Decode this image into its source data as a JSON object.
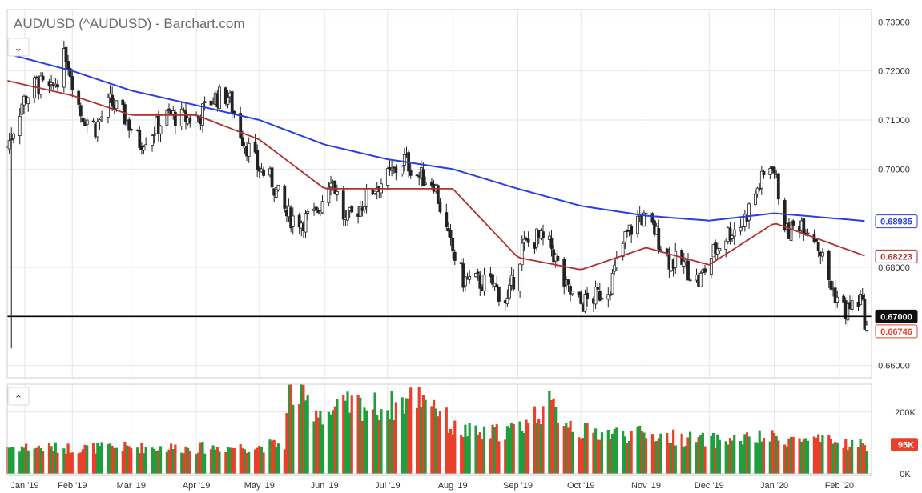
{
  "title": "AUD/USD (^AUDUSD) - Barchart.com",
  "colors": {
    "up": "#1f9e3c",
    "down": "#e8402a",
    "ma_long": "#2a3fe0",
    "ma_short": "#b22f2f",
    "support": "#000000",
    "grid": "#e6e6e6"
  },
  "chart_data": [
    {
      "type": "candlestick",
      "title": "AUD/USD (^AUDUSD) - Barchart.com",
      "x_range": [
        "2019-01-01",
        "2020-02-14"
      ],
      "x_ticks": [
        "Jan '19",
        "Feb '19",
        "Mar '19",
        "Apr '19",
        "May '19",
        "Jun '19",
        "Jul '19",
        "Aug '19",
        "Sep '19",
        "Oct '19",
        "Nov '19",
        "Dec '19",
        "Jan '20",
        "Feb '20"
      ],
      "y_ticks": [
        "0.73000",
        "0.72000",
        "0.71000",
        "0.70000",
        "0.68000",
        "0.66000"
      ],
      "ylim": [
        0.6575,
        0.7325
      ],
      "grid": true,
      "close_series": [
        [
          "2019-01-01",
          0.7045
        ],
        [
          "2019-01-08",
          0.7135
        ],
        [
          "2019-01-15",
          0.7175
        ],
        [
          "2019-01-22",
          0.7155
        ],
        [
          "2019-01-29",
          0.7235
        ],
        [
          "2019-02-05",
          0.7115
        ],
        [
          "2019-02-12",
          0.7085
        ],
        [
          "2019-02-19",
          0.7135
        ],
        [
          "2019-02-26",
          0.7105
        ],
        [
          "2019-03-05",
          0.7055
        ],
        [
          "2019-03-12",
          0.7082
        ],
        [
          "2019-03-19",
          0.711
        ],
        [
          "2019-03-26",
          0.7102
        ],
        [
          "2019-04-02",
          0.7105
        ],
        [
          "2019-04-09",
          0.7145
        ],
        [
          "2019-04-16",
          0.715
        ],
        [
          "2019-04-23",
          0.7065
        ],
        [
          "2019-04-30",
          0.7005
        ],
        [
          "2019-05-07",
          0.6975
        ],
        [
          "2019-05-14",
          0.6905
        ],
        [
          "2019-05-21",
          0.6895
        ],
        [
          "2019-05-28",
          0.6905
        ],
        [
          "2019-06-04",
          0.699
        ],
        [
          "2019-06-11",
          0.689
        ],
        [
          "2019-06-18",
          0.6925
        ],
        [
          "2019-06-25",
          0.6965
        ],
        [
          "2019-07-02",
          0.6985
        ],
        [
          "2019-07-09",
          0.702
        ],
        [
          "2019-07-16",
          0.6985
        ],
        [
          "2019-07-23",
          0.6975
        ],
        [
          "2019-07-30",
          0.6855
        ],
        [
          "2019-08-06",
          0.6775
        ],
        [
          "2019-08-13",
          0.677
        ],
        [
          "2019-08-20",
          0.6765
        ],
        [
          "2019-08-27",
          0.673
        ],
        [
          "2019-09-03",
          0.684
        ],
        [
          "2019-09-10",
          0.686
        ],
        [
          "2019-09-17",
          0.684
        ],
        [
          "2019-09-24",
          0.6755
        ],
        [
          "2019-10-01",
          0.6725
        ],
        [
          "2019-10-08",
          0.674
        ],
        [
          "2019-10-15",
          0.6765
        ],
        [
          "2019-10-22",
          0.686
        ],
        [
          "2019-10-29",
          0.6905
        ],
        [
          "2019-11-05",
          0.6875
        ],
        [
          "2019-11-12",
          0.6815
        ],
        [
          "2019-11-19",
          0.6805
        ],
        [
          "2019-11-26",
          0.677
        ],
        [
          "2019-12-03",
          0.683
        ],
        [
          "2019-12-10",
          0.687
        ],
        [
          "2019-12-17",
          0.689
        ],
        [
          "2019-12-24",
          0.696
        ],
        [
          "2019-12-31",
          0.7015
        ],
        [
          "2020-01-07",
          0.687
        ],
        [
          "2020-01-14",
          0.6895
        ],
        [
          "2020-01-21",
          0.686
        ],
        [
          "2020-01-28",
          0.676
        ],
        [
          "2020-02-04",
          0.671
        ],
        [
          "2020-02-11",
          0.6735
        ],
        [
          "2020-02-14",
          0.6675
        ]
      ],
      "series": [
        {
          "name": "",
          "points": [
            [
              "2019-01-01",
              0.7235
            ],
            [
              "2019-02-01",
              0.72
            ],
            [
              "2019-03-01",
              0.716
            ],
            [
              "2019-04-01",
              0.713
            ],
            [
              "2019-05-01",
              0.71
            ],
            [
              "2019-06-01",
              0.705
            ],
            [
              "2019-07-01",
              0.702
            ],
            [
              "2019-08-01",
              0.7
            ],
            [
              "2019-09-01",
              0.696
            ],
            [
              "2019-10-01",
              0.6925
            ],
            [
              "2019-11-01",
              0.6905
            ],
            [
              "2019-12-01",
              0.6895
            ],
            [
              "2020-01-01",
              0.691
            ],
            [
              "2020-02-14",
              0.6894
            ]
          ]
        },
        {
          "name": "",
          "points": [
            [
              "2019-01-01",
              0.718
            ],
            [
              "2019-02-01",
              0.715
            ],
            [
              "2019-03-01",
              0.711
            ],
            [
              "2019-04-01",
              0.711
            ],
            [
              "2019-05-01",
              0.706
            ],
            [
              "2019-06-01",
              0.696
            ],
            [
              "2019-07-01",
              0.696
            ],
            [
              "2019-08-01",
              0.696
            ],
            [
              "2019-09-01",
              0.682
            ],
            [
              "2019-10-01",
              0.6795
            ],
            [
              "2019-11-01",
              0.684
            ],
            [
              "2019-12-01",
              0.6805
            ],
            [
              "2020-01-01",
              0.689
            ],
            [
              "2020-02-14",
              0.6822
            ]
          ]
        }
      ],
      "horizontal_line": 0.67,
      "price_labels": [
        {
          "role": "ma_long",
          "text": "0.68935",
          "value": 0.68935
        },
        {
          "role": "ma_short",
          "text": "0.68223",
          "value": 0.68223
        },
        {
          "role": "support",
          "text": "0.67000",
          "value": 0.67
        },
        {
          "role": "last",
          "text": "0.66746",
          "value": 0.66746
        }
      ]
    },
    {
      "type": "bar",
      "title": "",
      "y_ticks": [
        "200K",
        "0K"
      ],
      "ylim": [
        0,
        290000
      ],
      "last_label": "95K",
      "volume_series": [
        [
          "2019-01-01",
          90000
        ],
        [
          "2019-02-01",
          85000
        ],
        [
          "2019-03-01",
          88000
        ],
        [
          "2019-04-01",
          86000
        ],
        [
          "2019-05-01",
          90000
        ],
        [
          "2019-05-13",
          100000
        ],
        [
          "2019-05-15",
          270000
        ],
        [
          "2019-06-01",
          200000
        ],
        [
          "2019-06-15",
          230000
        ],
        [
          "2019-07-01",
          220000
        ],
        [
          "2019-07-20",
          270000
        ],
        [
          "2019-08-01",
          150000
        ],
        [
          "2019-08-15",
          130000
        ],
        [
          "2019-09-01",
          150000
        ],
        [
          "2019-09-15",
          230000
        ],
        [
          "2019-10-01",
          140000
        ],
        [
          "2019-11-01",
          130000
        ],
        [
          "2019-12-01",
          110000
        ],
        [
          "2020-01-01",
          120000
        ],
        [
          "2020-02-14",
          95000
        ]
      ]
    }
  ],
  "ui": {
    "collapse_up_glyph": "⌃",
    "collapse_down_glyph": "⌄",
    "collapse_down_icon": "chevron-down-icon",
    "collapse_up_icon": "chevron-up-icon"
  }
}
